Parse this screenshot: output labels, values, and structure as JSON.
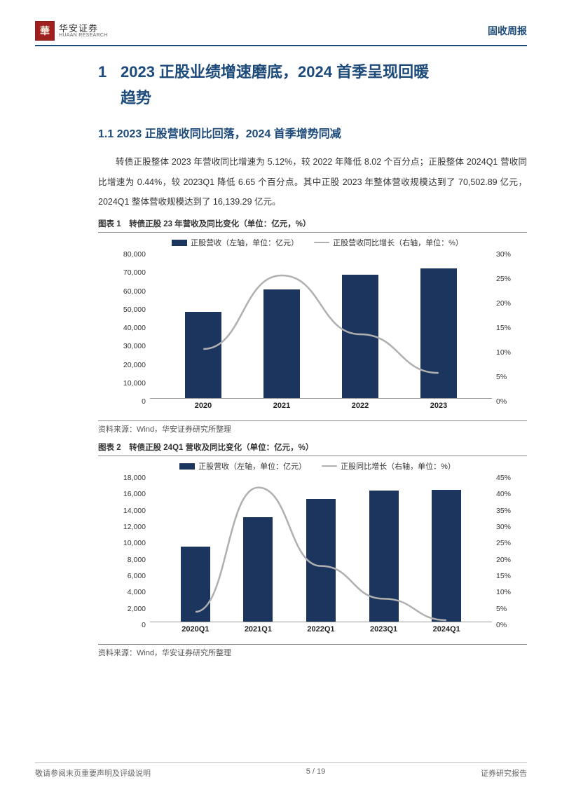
{
  "header": {
    "logo_glyph": "華",
    "logo_cn": "华安证券",
    "logo_en": "HUAAN RESEARCH",
    "right_label": "固收周报"
  },
  "h1": {
    "number": "1",
    "line1": "2023 正股业绩增速磨底，2024 首季呈现回暖",
    "line2": "趋势"
  },
  "h2": {
    "text": "1.1 2023 正股营收同比回落，2024 首季增势同减"
  },
  "paragraph": "转债正股整体 2023 年营收同比增速为 5.12%，较 2022 年降低 8.02 个百分点；正股整体 2024Q1 营收同比增速为 0.44%，较 2023Q1 降低 6.65 个百分点。其中正股 2023 年整体营收规模达到了 70,502.89 亿元，2024Q1 整体营收规模达到了 16,139.29 亿元。",
  "chart1": {
    "title": "图表 1　转债正股 23 年营收及同比变化（单位：亿元，%）",
    "source": "资料来源：Wind，华安证券研究所整理",
    "legend_bar": "正股营收（左轴，单位：亿元）",
    "legend_line": "正股营收同比增长（右轴，单位：%）",
    "bar_color": "#1c355e",
    "line_color": "#b0b0b0",
    "categories": [
      "2020",
      "2021",
      "2022",
      "2023"
    ],
    "y_left": {
      "min": 0,
      "max": 80000,
      "step": 10000,
      "ticks": [
        "80,000",
        "70,000",
        "60,000",
        "50,000",
        "40,000",
        "30,000",
        "20,000",
        "10,000",
        "0"
      ]
    },
    "y_right": {
      "min": 0,
      "max": 30,
      "step": 5,
      "ticks": [
        "30%",
        "25%",
        "20%",
        "15%",
        "10%",
        "5%",
        "0%"
      ]
    },
    "bars": [
      47000,
      59000,
      67000,
      70500
    ],
    "line_pct": [
      10,
      25,
      13,
      5.12
    ]
  },
  "chart2": {
    "title": "图表 2　转债正股 24Q1 营收及同比变化（单位：亿元，%）",
    "source": "资料来源：Wind，华安证券研究所整理",
    "legend_bar": "正股营收（左轴，单位：亿元）",
    "legend_line": "正股同比增长（右轴，单位：%）",
    "bar_color": "#1c355e",
    "line_color": "#b0b0b0",
    "categories": [
      "2020Q1",
      "2021Q1",
      "2022Q1",
      "2023Q1",
      "2024Q1"
    ],
    "y_left": {
      "min": 0,
      "max": 18000,
      "step": 2000,
      "ticks": [
        "18,000",
        "16,000",
        "14,000",
        "12,000",
        "10,000",
        "8,000",
        "6,000",
        "4,000",
        "2,000",
        "0"
      ]
    },
    "y_right": {
      "min": 0,
      "max": 45,
      "step": 5,
      "ticks": [
        "45%",
        "40%",
        "35%",
        "30%",
        "25%",
        "20%",
        "15%",
        "10%",
        "5%",
        "0%"
      ]
    },
    "bars": [
      9200,
      12800,
      15000,
      16000,
      16139
    ],
    "line_pct": [
      3,
      41,
      17,
      7,
      0.44
    ]
  },
  "footer": {
    "left": "敬请参阅末页重要声明及评级说明",
    "center": "5 / 19",
    "right": "证券研究报告"
  }
}
